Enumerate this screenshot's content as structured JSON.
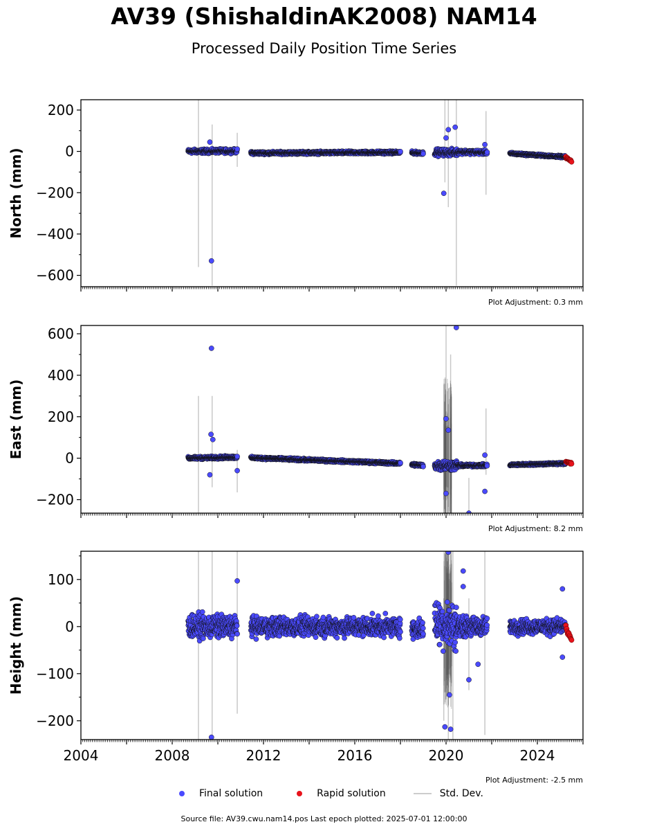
{
  "title": "AV39 (ShishaldinAK2008) NAM14",
  "subtitle": "Processed Daily Position Time Series",
  "footer": "Source file: AV39.cwu.nam14.pos  Last epoch plotted: 2025-07-01 12:00:00",
  "legend": {
    "final": "Final solution",
    "rapid": "Rapid solution",
    "std": "Std. Dev."
  },
  "colors": {
    "final": "#4a4aff",
    "rapid": "#e8131b",
    "std": "#c8c8c8",
    "axis": "#000000"
  },
  "chart_data": [
    {
      "type": "scatter",
      "panel": "north",
      "ylabel": "North (mm)",
      "adjustment": "Plot Adjustment: 0.3 mm",
      "xlim": [
        2004,
        2026
      ],
      "ylim": [
        -655,
        250
      ],
      "yticks": [
        200,
        0,
        -200,
        -400,
        -600
      ],
      "ytick_labels": [
        "200",
        "0",
        "−200",
        "−400",
        "−600"
      ],
      "segments": [
        {
          "start": 2008.7,
          "end": 2010.85,
          "y0": 0,
          "y1": 2,
          "spread": 12
        },
        {
          "start": 2011.45,
          "end": 2018.0,
          "y0": -8,
          "y1": -5,
          "spread": 8
        },
        {
          "start": 2018.5,
          "end": 2019.0,
          "y0": -6,
          "y1": -8,
          "spread": 8
        },
        {
          "start": 2019.5,
          "end": 2020.5,
          "y0": -5,
          "y1": -5,
          "spread": 20
        },
        {
          "start": 2020.5,
          "end": 2021.8,
          "y0": -2,
          "y1": -5,
          "spread": 12
        },
        {
          "start": 2022.8,
          "end": 2025.25,
          "y0": -10,
          "y1": -27,
          "spread": 6
        }
      ],
      "outliers": [
        {
          "x": 2009.72,
          "y": -530
        },
        {
          "x": 2009.65,
          "y": 45
        },
        {
          "x": 2019.9,
          "y": -203
        },
        {
          "x": 2020.1,
          "y": 105
        },
        {
          "x": 2020.4,
          "y": 117
        },
        {
          "x": 2020.0,
          "y": 65
        },
        {
          "x": 2021.7,
          "y": 33
        }
      ],
      "rapid": {
        "start": 2025.25,
        "end": 2025.5,
        "y0": -28,
        "y1": -50
      },
      "stddev_bars": [
        {
          "x": 2009.15,
          "low": -560,
          "high": 250
        },
        {
          "x": 2009.75,
          "low": -650,
          "high": 130
        },
        {
          "x": 2010.85,
          "low": -75,
          "high": 90
        },
        {
          "x": 2019.95,
          "low": -150,
          "high": 250
        },
        {
          "x": 2020.1,
          "low": -270,
          "high": 250
        },
        {
          "x": 2020.45,
          "low": -650,
          "high": 250
        },
        {
          "x": 2021.75,
          "low": -210,
          "high": 195
        }
      ]
    },
    {
      "type": "scatter",
      "panel": "east",
      "ylabel": "East (mm)",
      "adjustment": "Plot Adjustment: 8.2 mm",
      "xlim": [
        2004,
        2026
      ],
      "ylim": [
        -265,
        640
      ],
      "yticks": [
        600,
        400,
        200,
        0,
        -200
      ],
      "ytick_labels": [
        "600",
        "400",
        "200",
        "0",
        "−200"
      ],
      "segments": [
        {
          "start": 2008.7,
          "end": 2010.85,
          "y0": 0,
          "y1": 5,
          "spread": 8
        },
        {
          "start": 2011.45,
          "end": 2018.0,
          "y0": 2,
          "y1": -25,
          "spread": 7
        },
        {
          "start": 2018.5,
          "end": 2019.0,
          "y0": -30,
          "y1": -35,
          "spread": 8
        },
        {
          "start": 2019.5,
          "end": 2020.5,
          "y0": -35,
          "y1": -35,
          "spread": 30
        },
        {
          "start": 2020.5,
          "end": 2021.8,
          "y0": -35,
          "y1": -35,
          "spread": 8
        },
        {
          "start": 2022.8,
          "end": 2025.25,
          "y0": -32,
          "y1": -25,
          "spread": 6
        }
      ],
      "outliers": [
        {
          "x": 2009.72,
          "y": 530
        },
        {
          "x": 2009.7,
          "y": 115
        },
        {
          "x": 2009.78,
          "y": 90
        },
        {
          "x": 2009.65,
          "y": -80
        },
        {
          "x": 2010.85,
          "y": -60
        },
        {
          "x": 2020.0,
          "y": 190
        },
        {
          "x": 2020.1,
          "y": 135
        },
        {
          "x": 2020.0,
          "y": -170
        },
        {
          "x": 2020.45,
          "y": 630
        },
        {
          "x": 2021.0,
          "y": -265
        },
        {
          "x": 2021.7,
          "y": -160
        },
        {
          "x": 2021.7,
          "y": 15
        }
      ],
      "rapid": {
        "start": 2025.25,
        "end": 2025.5,
        "y0": -15,
        "y1": -25
      },
      "stddev_bars": [
        {
          "x": 2009.15,
          "low": -265,
          "high": 300
        },
        {
          "x": 2009.75,
          "low": -140,
          "high": 300
        },
        {
          "x": 2010.85,
          "low": -165,
          "high": 40
        },
        {
          "x": 2019.9,
          "low": -200,
          "high": 200
        },
        {
          "x": 2020.0,
          "low": -265,
          "high": 640
        },
        {
          "x": 2020.2,
          "low": -265,
          "high": 500
        },
        {
          "x": 2021.0,
          "low": -265,
          "high": -95
        },
        {
          "x": 2021.75,
          "low": -80,
          "high": 240
        }
      ]
    },
    {
      "type": "scatter",
      "panel": "height",
      "ylabel": "Height (mm)",
      "adjustment": "Plot Adjustment: -2.5 mm",
      "xlim": [
        2004,
        2026
      ],
      "ylim": [
        -240,
        160
      ],
      "yticks": [
        100,
        0,
        -100,
        -200
      ],
      "ytick_labels": [
        "100",
        "0",
        "−100",
        "−200"
      ],
      "xticks": [
        2004,
        2008,
        2012,
        2016,
        2020,
        2024
      ],
      "xtick_labels": [
        "2004",
        "2008",
        "2012",
        "2016",
        "2020",
        "2024"
      ],
      "segments": [
        {
          "start": 2008.7,
          "end": 2010.85,
          "y0": 0,
          "y1": 0,
          "spread": 30
        },
        {
          "start": 2011.45,
          "end": 2018.0,
          "y0": 0,
          "y1": 0,
          "spread": 25
        },
        {
          "start": 2018.5,
          "end": 2019.0,
          "y0": -5,
          "y1": -5,
          "spread": 25
        },
        {
          "start": 2019.5,
          "end": 2020.5,
          "y0": 10,
          "y1": 0,
          "spread": 60
        },
        {
          "start": 2020.5,
          "end": 2021.8,
          "y0": 0,
          "y1": 0,
          "spread": 25
        },
        {
          "start": 2022.8,
          "end": 2025.25,
          "y0": 0,
          "y1": 0,
          "spread": 20
        }
      ],
      "outliers": [
        {
          "x": 2009.72,
          "y": -235
        },
        {
          "x": 2010.85,
          "y": 97
        },
        {
          "x": 2019.95,
          "y": -213
        },
        {
          "x": 2020.2,
          "y": -218
        },
        {
          "x": 2020.15,
          "y": -145
        },
        {
          "x": 2020.1,
          "y": 158
        },
        {
          "x": 2020.75,
          "y": 118
        },
        {
          "x": 2020.75,
          "y": 85
        },
        {
          "x": 2021.0,
          "y": -113
        },
        {
          "x": 2021.4,
          "y": -80
        },
        {
          "x": 2025.1,
          "y": 80
        },
        {
          "x": 2025.1,
          "y": -65
        }
      ],
      "rapid": {
        "start": 2025.25,
        "end": 2025.5,
        "y0": -5,
        "y1": -30
      },
      "stddev_bars": [
        {
          "x": 2009.15,
          "low": -240,
          "high": 160
        },
        {
          "x": 2009.75,
          "low": -240,
          "high": 160
        },
        {
          "x": 2010.85,
          "low": -185,
          "high": 160
        },
        {
          "x": 2019.9,
          "low": -200,
          "high": 60
        },
        {
          "x": 2020.1,
          "low": -240,
          "high": 160
        },
        {
          "x": 2020.3,
          "low": -240,
          "high": 160
        },
        {
          "x": 2021.0,
          "low": -135,
          "high": 60
        },
        {
          "x": 2021.7,
          "low": -230,
          "high": 160
        }
      ]
    }
  ]
}
